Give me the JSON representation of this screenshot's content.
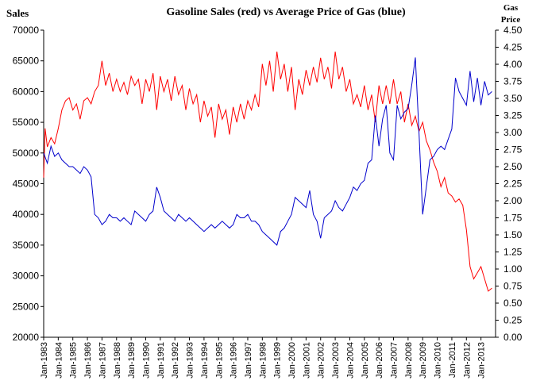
{
  "chart_data": {
    "type": "line",
    "title": "Gasoline Sales (red) vs Average Price of Gas (blue)",
    "ylabel_left": "Sales",
    "ylabel_right": [
      "Gas",
      "Price"
    ],
    "ylim_left": [
      20000,
      70000
    ],
    "ylim_right": [
      0,
      4.5
    ],
    "yticks_left": [
      "20000",
      "25000",
      "30000",
      "35000",
      "40000",
      "45000",
      "50000",
      "55000",
      "60000",
      "65000",
      "70000"
    ],
    "yticks_right": [
      "0.00",
      "0.25",
      "0.50",
      "0.75",
      "1.00",
      "1.25",
      "1.50",
      "1.75",
      "2.00",
      "2.25",
      "2.50",
      "2.75",
      "3.00",
      "3.25",
      "3.50",
      "3.75",
      "4.00",
      "4.25",
      "4.50"
    ],
    "x_start_year": 1983,
    "x_end_year": 2013,
    "grid": false,
    "legend": "none",
    "series": [
      {
        "color": "#ff0000",
        "axis": "left",
        "points": [
          [
            1983.0,
            46000
          ],
          [
            1983.1,
            54000
          ],
          [
            1983.25,
            51000
          ],
          [
            1983.5,
            52500
          ],
          [
            1983.75,
            51500
          ],
          [
            1984.0,
            54000
          ],
          [
            1984.25,
            57000
          ],
          [
            1984.5,
            58500
          ],
          [
            1984.75,
            59000
          ],
          [
            1985.0,
            57000
          ],
          [
            1985.25,
            58000
          ],
          [
            1985.5,
            55500
          ],
          [
            1985.75,
            58500
          ],
          [
            1986.0,
            59000
          ],
          [
            1986.25,
            58000
          ],
          [
            1986.5,
            60000
          ],
          [
            1986.75,
            61000
          ],
          [
            1987.0,
            65000
          ],
          [
            1987.25,
            61000
          ],
          [
            1987.5,
            63000
          ],
          [
            1987.75,
            60000
          ],
          [
            1988.0,
            62000
          ],
          [
            1988.25,
            60000
          ],
          [
            1988.5,
            61500
          ],
          [
            1988.75,
            59500
          ],
          [
            1989.0,
            62500
          ],
          [
            1989.25,
            61000
          ],
          [
            1989.5,
            62000
          ],
          [
            1989.75,
            58000
          ],
          [
            1990.0,
            62000
          ],
          [
            1990.25,
            60000
          ],
          [
            1990.5,
            63000
          ],
          [
            1990.75,
            57000
          ],
          [
            1991.0,
            62500
          ],
          [
            1991.25,
            60000
          ],
          [
            1991.5,
            62000
          ],
          [
            1991.75,
            58500
          ],
          [
            1992.0,
            62500
          ],
          [
            1992.25,
            59500
          ],
          [
            1992.5,
            61000
          ],
          [
            1992.75,
            57000
          ],
          [
            1993.0,
            60500
          ],
          [
            1993.25,
            58000
          ],
          [
            1993.5,
            59500
          ],
          [
            1993.75,
            55000
          ],
          [
            1994.0,
            58500
          ],
          [
            1994.25,
            56000
          ],
          [
            1994.5,
            57500
          ],
          [
            1994.75,
            52500
          ],
          [
            1995.0,
            58000
          ],
          [
            1995.25,
            55500
          ],
          [
            1995.5,
            57000
          ],
          [
            1995.75,
            53000
          ],
          [
            1996.0,
            57500
          ],
          [
            1996.25,
            55000
          ],
          [
            1996.5,
            58000
          ],
          [
            1996.75,
            55500
          ],
          [
            1997.0,
            58500
          ],
          [
            1997.25,
            57000
          ],
          [
            1997.5,
            59500
          ],
          [
            1997.75,
            57500
          ],
          [
            1998.0,
            64500
          ],
          [
            1998.25,
            61000
          ],
          [
            1998.5,
            65000
          ],
          [
            1998.75,
            60000
          ],
          [
            1999.0,
            66500
          ],
          [
            1999.25,
            62000
          ],
          [
            1999.5,
            64500
          ],
          [
            1999.75,
            60000
          ],
          [
            2000.0,
            64000
          ],
          [
            2000.25,
            57000
          ],
          [
            2000.5,
            62000
          ],
          [
            2000.75,
            59500
          ],
          [
            2001.0,
            63500
          ],
          [
            2001.25,
            61000
          ],
          [
            2001.5,
            64000
          ],
          [
            2001.75,
            61500
          ],
          [
            2002.0,
            65500
          ],
          [
            2002.25,
            62000
          ],
          [
            2002.5,
            64000
          ],
          [
            2002.75,
            60500
          ],
          [
            2003.0,
            66500
          ],
          [
            2003.25,
            62000
          ],
          [
            2003.5,
            64000
          ],
          [
            2003.75,
            60000
          ],
          [
            2004.0,
            62000
          ],
          [
            2004.25,
            58000
          ],
          [
            2004.5,
            59500
          ],
          [
            2004.75,
            57500
          ],
          [
            2005.0,
            61000
          ],
          [
            2005.25,
            57000
          ],
          [
            2005.5,
            59500
          ],
          [
            2005.75,
            55000
          ],
          [
            2006.0,
            61000
          ],
          [
            2006.25,
            58000
          ],
          [
            2006.5,
            61000
          ],
          [
            2006.75,
            58000
          ],
          [
            2007.0,
            62000
          ],
          [
            2007.25,
            58000
          ],
          [
            2007.5,
            60000
          ],
          [
            2007.75,
            55000
          ],
          [
            2008.0,
            58000
          ],
          [
            2008.25,
            54500
          ],
          [
            2008.5,
            56000
          ],
          [
            2008.75,
            53500
          ],
          [
            2009.0,
            55000
          ],
          [
            2009.25,
            52000
          ],
          [
            2009.5,
            50500
          ],
          [
            2009.75,
            48500
          ],
          [
            2010.0,
            47000
          ],
          [
            2010.25,
            44500
          ],
          [
            2010.5,
            46000
          ],
          [
            2010.75,
            43500
          ],
          [
            2011.0,
            43000
          ],
          [
            2011.25,
            42000
          ],
          [
            2011.5,
            42500
          ],
          [
            2011.75,
            41500
          ],
          [
            2012.0,
            37500
          ],
          [
            2012.25,
            31500
          ],
          [
            2012.5,
            29500
          ],
          [
            2012.75,
            30500
          ],
          [
            2013.0,
            31500
          ],
          [
            2013.25,
            29500
          ],
          [
            2013.5,
            27500
          ],
          [
            2013.75,
            28000
          ]
        ]
      },
      {
        "color": "#0000cc",
        "axis": "right",
        "points": [
          [
            1983.0,
            2.7
          ],
          [
            1983.25,
            2.55
          ],
          [
            1983.5,
            2.8
          ],
          [
            1983.75,
            2.65
          ],
          [
            1984.0,
            2.7
          ],
          [
            1984.25,
            2.6
          ],
          [
            1984.5,
            2.55
          ],
          [
            1984.75,
            2.5
          ],
          [
            1985.0,
            2.5
          ],
          [
            1985.25,
            2.45
          ],
          [
            1985.5,
            2.4
          ],
          [
            1985.75,
            2.5
          ],
          [
            1986.0,
            2.45
          ],
          [
            1986.25,
            2.35
          ],
          [
            1986.5,
            1.8
          ],
          [
            1986.75,
            1.75
          ],
          [
            1987.0,
            1.65
          ],
          [
            1987.25,
            1.7
          ],
          [
            1987.5,
            1.8
          ],
          [
            1987.75,
            1.75
          ],
          [
            1988.0,
            1.75
          ],
          [
            1988.25,
            1.7
          ],
          [
            1988.5,
            1.75
          ],
          [
            1988.75,
            1.7
          ],
          [
            1989.0,
            1.65
          ],
          [
            1989.25,
            1.85
          ],
          [
            1989.5,
            1.8
          ],
          [
            1989.75,
            1.75
          ],
          [
            1990.0,
            1.7
          ],
          [
            1990.25,
            1.8
          ],
          [
            1990.5,
            1.85
          ],
          [
            1990.75,
            2.2
          ],
          [
            1991.0,
            2.05
          ],
          [
            1991.25,
            1.85
          ],
          [
            1991.5,
            1.8
          ],
          [
            1991.75,
            1.75
          ],
          [
            1992.0,
            1.7
          ],
          [
            1992.25,
            1.8
          ],
          [
            1992.5,
            1.75
          ],
          [
            1992.75,
            1.7
          ],
          [
            1993.0,
            1.75
          ],
          [
            1993.25,
            1.7
          ],
          [
            1993.5,
            1.65
          ],
          [
            1993.75,
            1.6
          ],
          [
            1994.0,
            1.55
          ],
          [
            1994.25,
            1.6
          ],
          [
            1994.5,
            1.65
          ],
          [
            1994.75,
            1.6
          ],
          [
            1995.0,
            1.65
          ],
          [
            1995.25,
            1.7
          ],
          [
            1995.5,
            1.65
          ],
          [
            1995.75,
            1.6
          ],
          [
            1996.0,
            1.65
          ],
          [
            1996.25,
            1.8
          ],
          [
            1996.5,
            1.75
          ],
          [
            1996.75,
            1.75
          ],
          [
            1997.0,
            1.8
          ],
          [
            1997.25,
            1.7
          ],
          [
            1997.5,
            1.7
          ],
          [
            1997.75,
            1.65
          ],
          [
            1998.0,
            1.55
          ],
          [
            1998.25,
            1.5
          ],
          [
            1998.5,
            1.45
          ],
          [
            1998.75,
            1.4
          ],
          [
            1999.0,
            1.35
          ],
          [
            1999.25,
            1.55
          ],
          [
            1999.5,
            1.6
          ],
          [
            1999.75,
            1.7
          ],
          [
            2000.0,
            1.8
          ],
          [
            2000.25,
            2.05
          ],
          [
            2000.5,
            2.0
          ],
          [
            2000.75,
            1.95
          ],
          [
            2001.0,
            1.9
          ],
          [
            2001.25,
            2.15
          ],
          [
            2001.5,
            1.8
          ],
          [
            2001.75,
            1.7
          ],
          [
            2002.0,
            1.45
          ],
          [
            2002.25,
            1.75
          ],
          [
            2002.5,
            1.8
          ],
          [
            2002.75,
            1.85
          ],
          [
            2003.0,
            2.0
          ],
          [
            2003.25,
            1.9
          ],
          [
            2003.5,
            1.85
          ],
          [
            2003.75,
            1.95
          ],
          [
            2004.0,
            2.05
          ],
          [
            2004.25,
            2.2
          ],
          [
            2004.5,
            2.15
          ],
          [
            2004.75,
            2.25
          ],
          [
            2005.0,
            2.3
          ],
          [
            2005.25,
            2.55
          ],
          [
            2005.5,
            2.6
          ],
          [
            2005.75,
            3.25
          ],
          [
            2006.0,
            2.8
          ],
          [
            2006.25,
            3.2
          ],
          [
            2006.5,
            3.4
          ],
          [
            2006.75,
            2.7
          ],
          [
            2007.0,
            2.6
          ],
          [
            2007.25,
            3.4
          ],
          [
            2007.5,
            3.2
          ],
          [
            2007.75,
            3.3
          ],
          [
            2008.0,
            3.35
          ],
          [
            2008.25,
            3.7
          ],
          [
            2008.5,
            4.1
          ],
          [
            2008.75,
            3.0
          ],
          [
            2009.0,
            1.8
          ],
          [
            2009.25,
            2.2
          ],
          [
            2009.5,
            2.6
          ],
          [
            2009.75,
            2.65
          ],
          [
            2010.0,
            2.75
          ],
          [
            2010.25,
            2.8
          ],
          [
            2010.5,
            2.75
          ],
          [
            2010.75,
            2.9
          ],
          [
            2011.0,
            3.05
          ],
          [
            2011.25,
            3.8
          ],
          [
            2011.5,
            3.6
          ],
          [
            2011.75,
            3.5
          ],
          [
            2012.0,
            3.4
          ],
          [
            2012.25,
            3.9
          ],
          [
            2012.5,
            3.45
          ],
          [
            2012.75,
            3.8
          ],
          [
            2013.0,
            3.4
          ],
          [
            2013.25,
            3.75
          ],
          [
            2013.5,
            3.55
          ],
          [
            2013.75,
            3.6
          ]
        ]
      }
    ]
  }
}
